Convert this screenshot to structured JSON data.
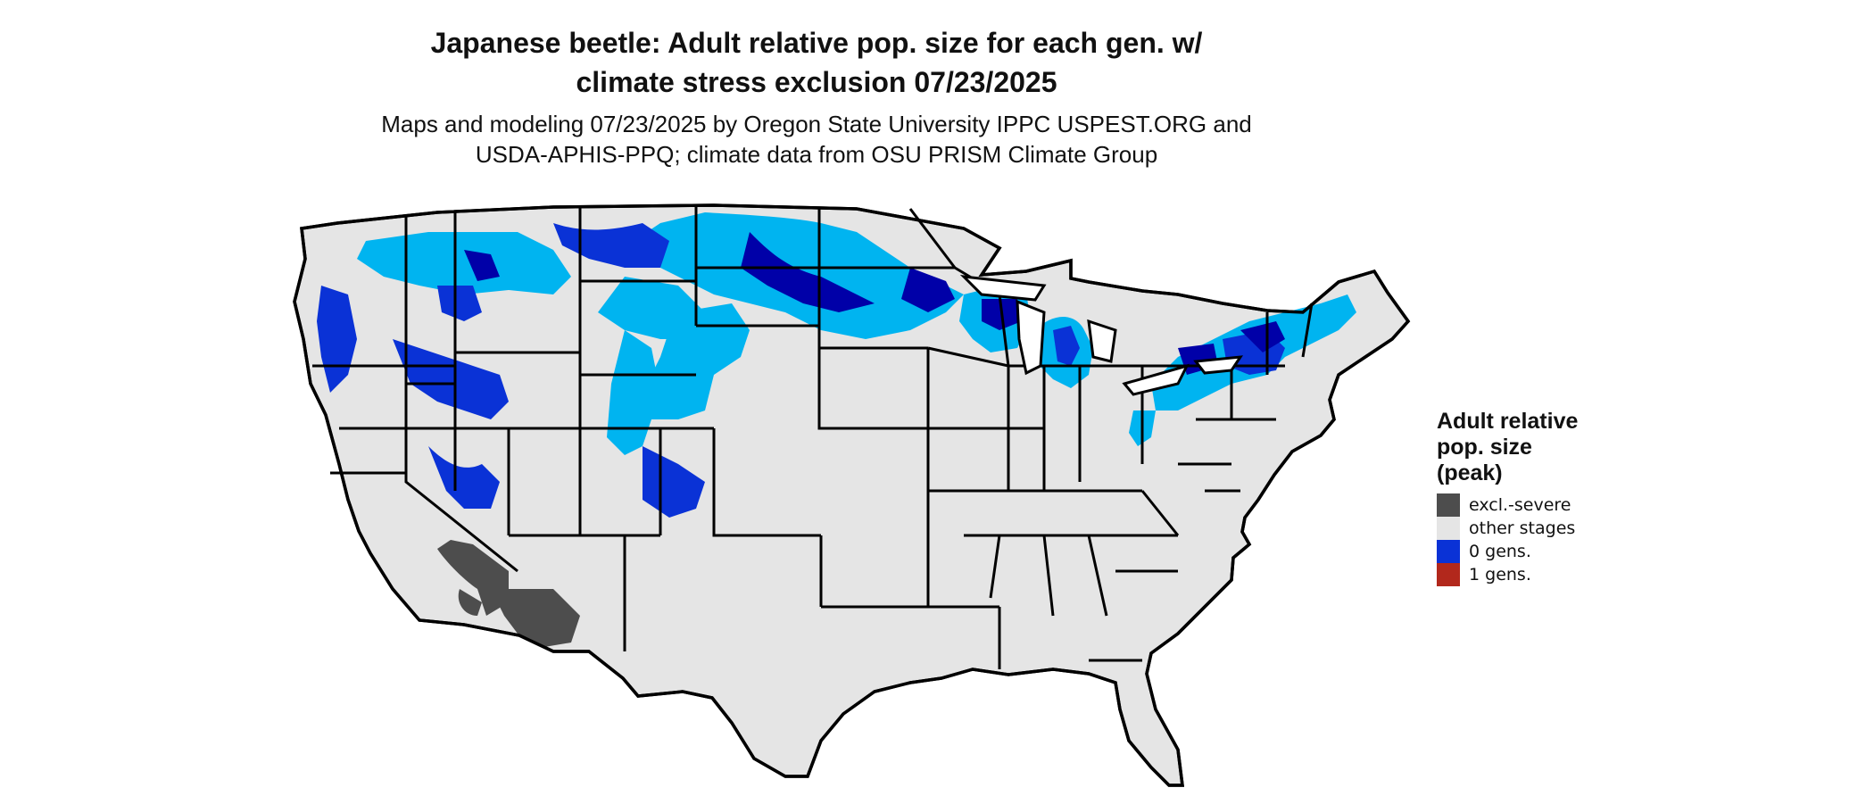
{
  "title_line1": "Japanese beetle: Adult relative pop. size for each gen. w/",
  "title_line2": "climate stress exclusion 07/23/2025",
  "subtitle_line1": "Maps and modeling 07/23/2025 by Oregon State University IPPC USPEST.ORG and",
  "subtitle_line2": "USDA-APHIS-PPQ; climate data from OSU PRISM Climate Group",
  "legend": {
    "title_line1": "Adult relative",
    "title_line2": "pop. size",
    "title_line3": "(peak)",
    "items": [
      {
        "label": "excl.-severe",
        "color": "#4d4d4d"
      },
      {
        "label": "other stages",
        "color": "#e5e5e5"
      },
      {
        "label": "0 gens.",
        "color": "#0a32d6"
      },
      {
        "label": "1 gens.",
        "color": "#b2281c"
      }
    ]
  },
  "map_colors": {
    "land": "#e5e5e5",
    "border": "#000000",
    "excluded": "#4d4d4d",
    "light_blue": "#00b4f0",
    "mid_blue": "#0a32d6",
    "dark_blue": "#0000a8"
  }
}
